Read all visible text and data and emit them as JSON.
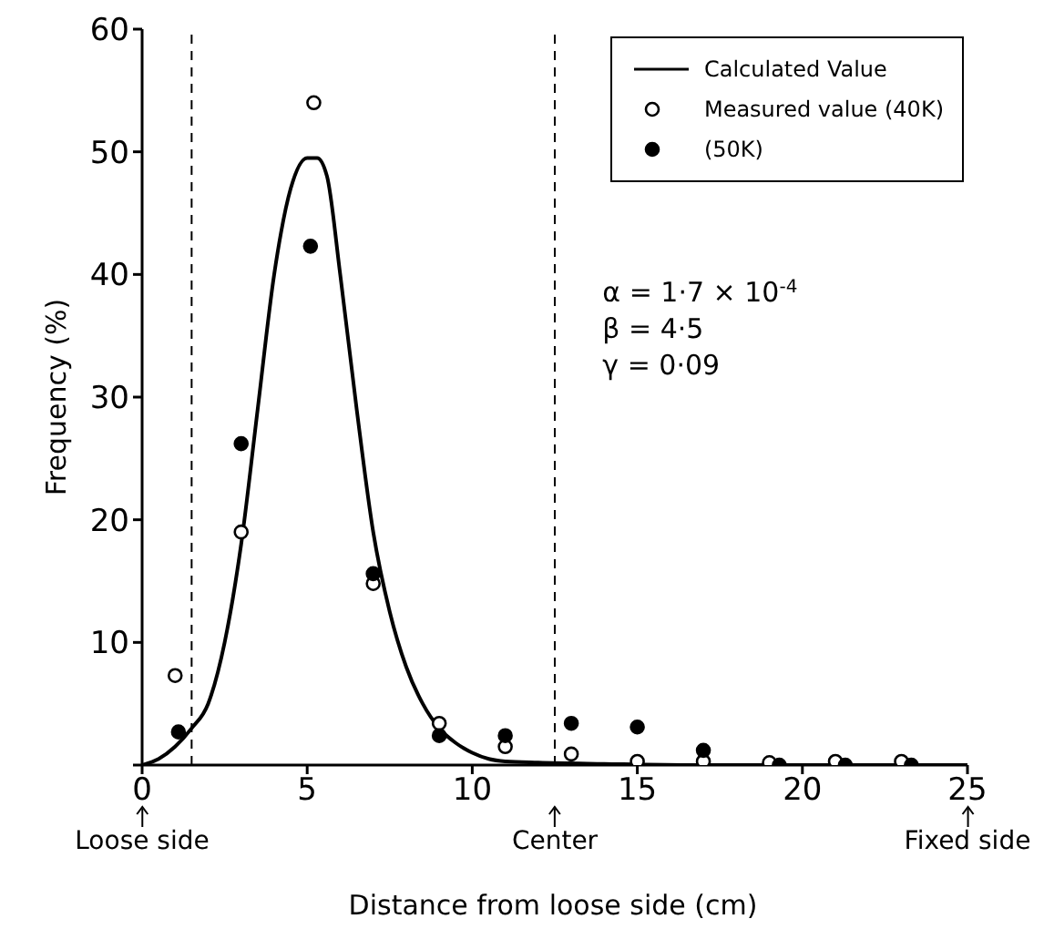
{
  "chart_data": {
    "type": "scatter",
    "xlabel": "Distance from loose side (cm)",
    "ylabel": "Frequency (%)",
    "xlim": [
      0,
      25
    ],
    "xticks": [
      0,
      5,
      10,
      15,
      20,
      25
    ],
    "ylim": [
      0,
      60
    ],
    "yticks": [
      {
        "value": 0,
        "label": null
      },
      10,
      20,
      30,
      40,
      50,
      60
    ],
    "grid": false,
    "legend": "top right",
    "tick_labels": "xy",
    "series": [
      {
        "name": "Calculated Value",
        "type": "line",
        "color": "#000000",
        "marker": "none",
        "line_style": "solid",
        "x": [
          0,
          0.5,
          1,
          1.5,
          2,
          2.5,
          3,
          3.5,
          4,
          4.5,
          5,
          5.3,
          5.6,
          6,
          6.5,
          7,
          7.5,
          8,
          8.5,
          9,
          9.5,
          10,
          10.5,
          11,
          12,
          14,
          17,
          20,
          25
        ],
        "values": [
          0,
          0.5,
          1.5,
          3,
          5,
          10,
          18,
          29,
          40,
          47,
          49.5,
          49.5,
          48,
          40,
          29,
          19,
          12.5,
          8,
          5,
          3,
          1.8,
          1,
          0.5,
          0.3,
          0.2,
          0.1,
          0,
          0,
          0
        ]
      },
      {
        "name": "Measured value (40K)",
        "color": "#000000",
        "marker": "circle",
        "x": [
          1,
          3,
          5.2,
          7,
          9,
          11,
          13,
          15,
          17,
          19,
          21,
          23
        ],
        "values": [
          7.3,
          19,
          54,
          14.8,
          3.4,
          1.5,
          0.9,
          0.3,
          0.3,
          0.2,
          0.3,
          0.3
        ]
      },
      {
        "name": "(50K)",
        "color": "#000000",
        "marker": "circle",
        "x": [
          1.1,
          3,
          5.1,
          7,
          9,
          11,
          13,
          15,
          17,
          19.3,
          21.3,
          23.3
        ],
        "values": [
          2.7,
          26.2,
          42.3,
          15.6,
          2.4,
          2.4,
          3.4,
          3.1,
          1.2,
          0,
          0,
          0
        ]
      }
    ],
    "ref_lines": [
      {
        "axis": "x",
        "value": 1.5,
        "label": null,
        "line_style": "dashed"
      },
      {
        "axis": "x",
        "value": 12.5,
        "label": null,
        "line_style": "dashed"
      }
    ],
    "annotations": [
      {
        "text": "Loose side",
        "x": 0,
        "y": 0
      },
      {
        "text": "Center",
        "x": 12.5,
        "y": 0
      },
      {
        "text": "Fixed side",
        "x": 25,
        "y": 0
      },
      "α = 1·7 × 10$^{-4}$",
      "β = 4·5",
      "γ = 0·09"
    ]
  }
}
